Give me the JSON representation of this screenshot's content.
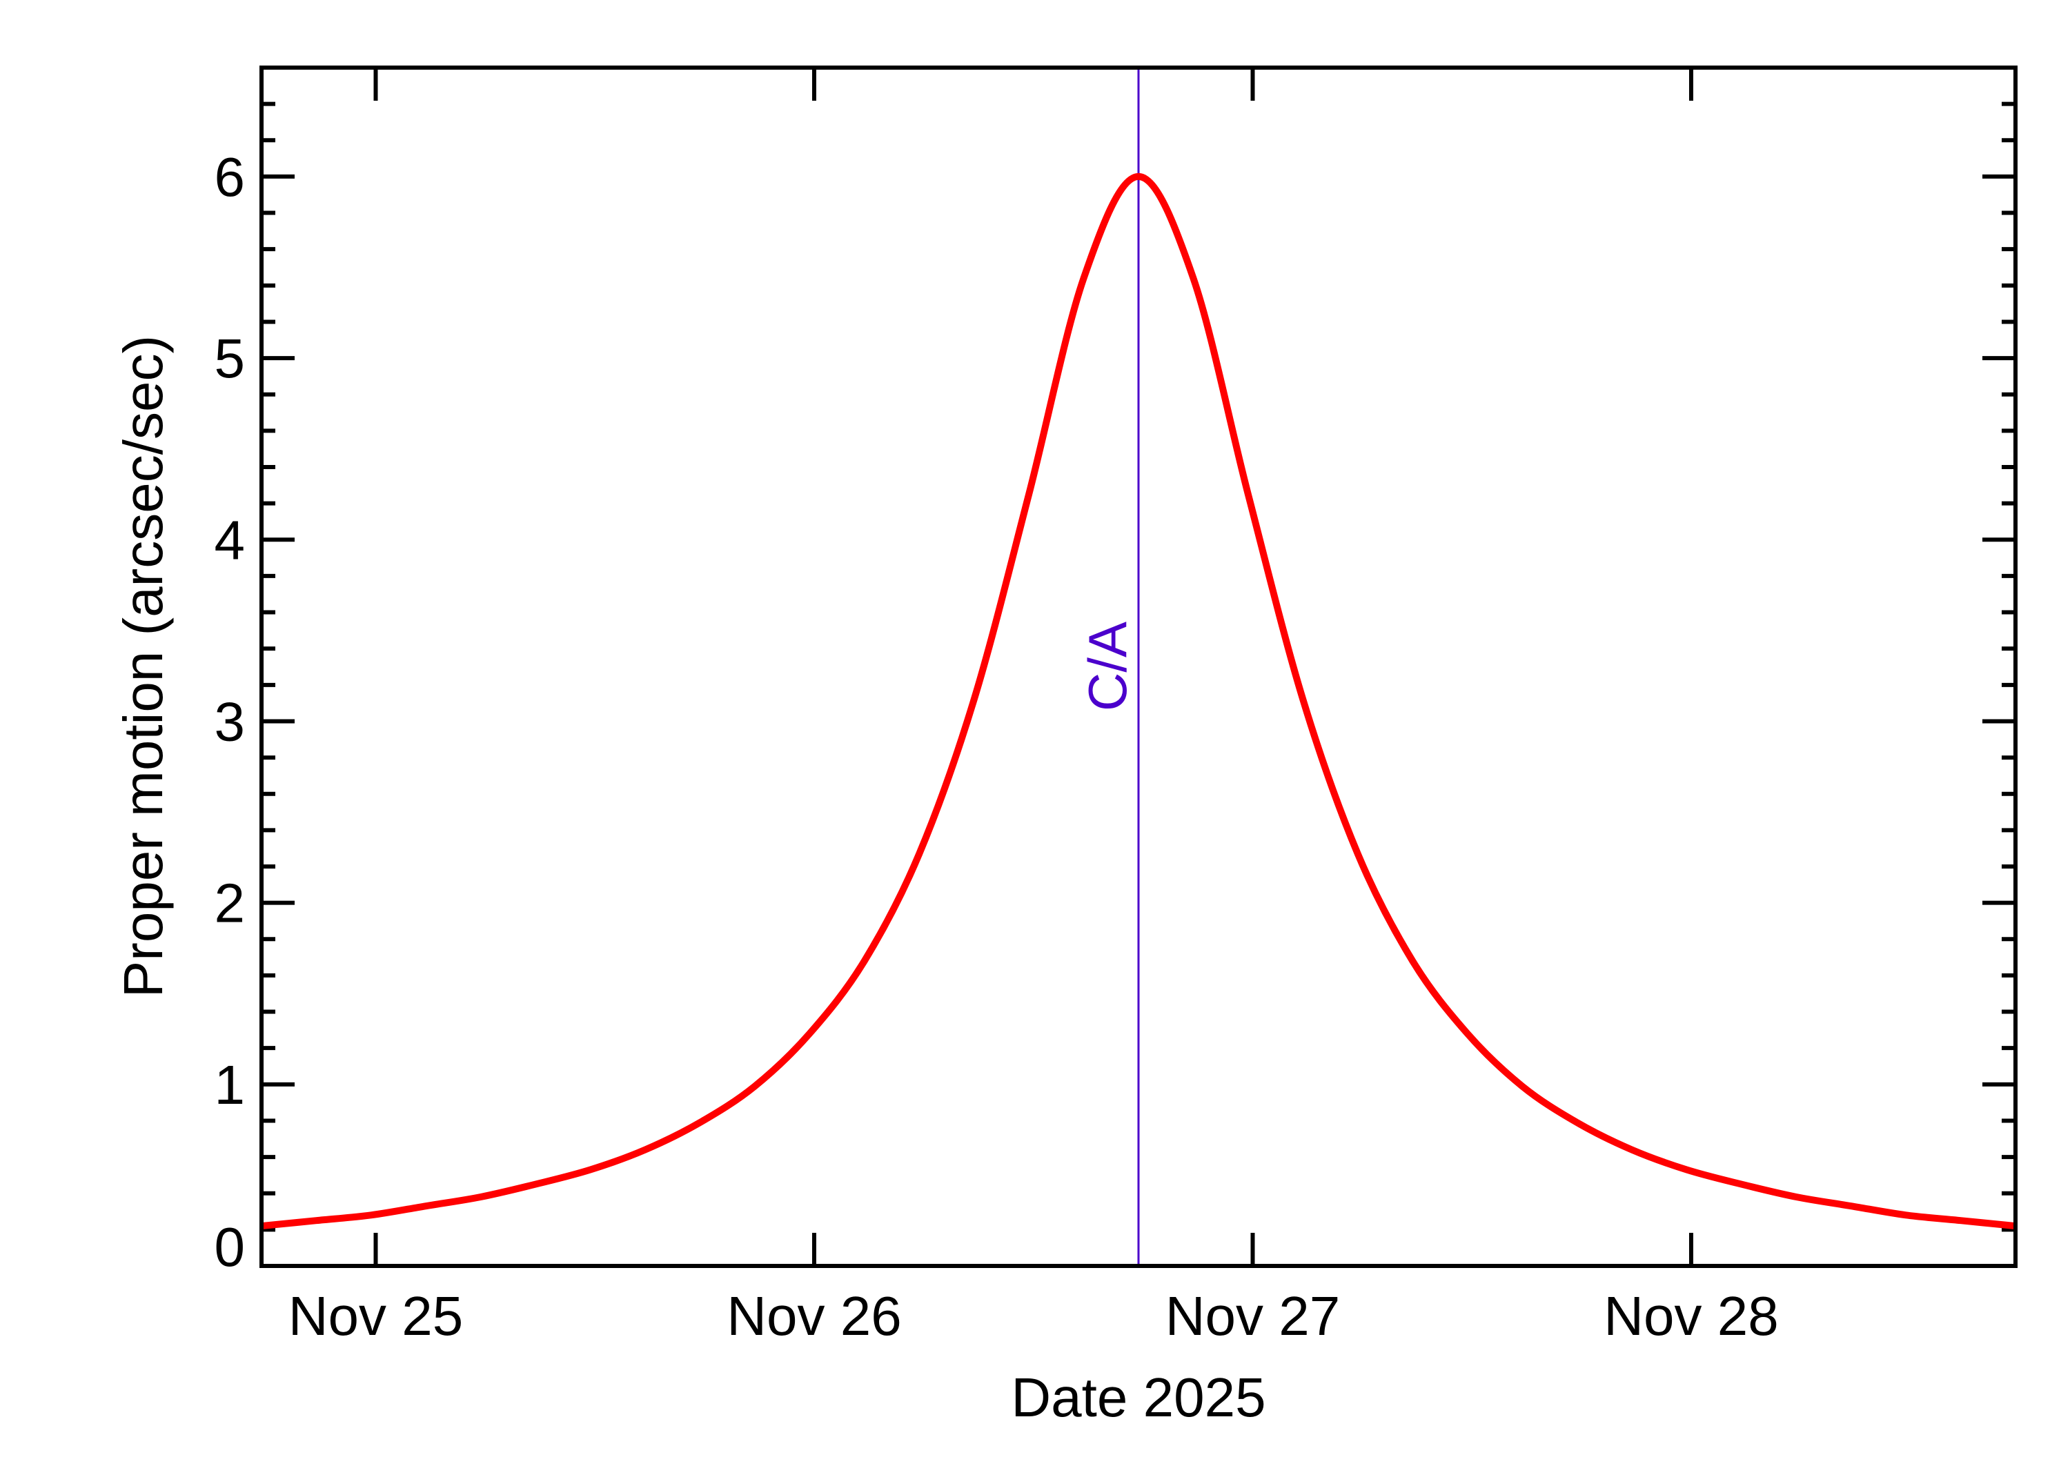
{
  "chart_data": {
    "type": "line",
    "title": "",
    "xlabel": "Date 2025",
    "ylabel": "Proper motion (arcsec/sec)",
    "xlim": [
      "2025-11-24T17:45",
      "2025-11-28T17:45"
    ],
    "ylim": [
      0,
      6.6
    ],
    "x_ticks": [
      {
        "date": "2025-11-25T00:00",
        "label": "Nov 25"
      },
      {
        "date": "2025-11-26T00:00",
        "label": "Nov 26"
      },
      {
        "date": "2025-11-27T00:00",
        "label": "Nov 27"
      },
      {
        "date": "2025-11-28T00:00",
        "label": "Nov 28"
      }
    ],
    "y_ticks": [
      0,
      1,
      2,
      3,
      4,
      5,
      6
    ],
    "y_minor_step": 0.2,
    "grid": false,
    "legend": "none",
    "annotation": {
      "label": "C/A",
      "date": "2025-11-26T17:45",
      "color": "#4B00CC"
    },
    "series": [
      {
        "color": "#FF0000",
        "x": [
          "2025-11-24T17:45",
          "2025-11-24T20:45",
          "2025-11-24T23:45",
          "2025-11-25T02:45",
          "2025-11-25T05:45",
          "2025-11-25T08:45",
          "2025-11-25T11:45",
          "2025-11-25T14:45",
          "2025-11-25T17:45",
          "2025-11-25T20:45",
          "2025-11-25T23:45",
          "2025-11-26T02:45",
          "2025-11-26T05:45",
          "2025-11-26T08:45",
          "2025-11-26T11:45",
          "2025-11-26T14:45",
          "2025-11-26T17:45",
          "2025-11-26T20:45",
          "2025-11-26T23:45",
          "2025-11-27T02:45",
          "2025-11-27T05:45",
          "2025-11-27T08:45",
          "2025-11-27T11:45",
          "2025-11-27T14:45",
          "2025-11-27T17:45",
          "2025-11-27T20:45",
          "2025-11-27T23:45",
          "2025-11-28T02:45",
          "2025-11-28T05:45",
          "2025-11-28T08:45",
          "2025-11-28T11:45",
          "2025-11-28T14:45",
          "2025-11-28T17:45"
        ],
        "y": [
          0.22,
          0.25,
          0.28,
          0.33,
          0.38,
          0.45,
          0.53,
          0.64,
          0.79,
          0.99,
          1.28,
          1.68,
          2.27,
          3.12,
          4.25,
          5.44,
          6.0,
          5.44,
          4.25,
          3.12,
          2.27,
          1.68,
          1.28,
          0.99,
          0.79,
          0.64,
          0.53,
          0.45,
          0.38,
          0.33,
          0.28,
          0.25,
          0.22
        ]
      }
    ]
  }
}
